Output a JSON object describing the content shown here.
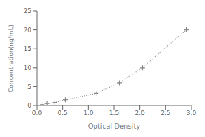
{
  "chart_data": {
    "type": "line",
    "x": [
      0.1,
      0.2,
      0.35,
      0.55,
      1.15,
      1.6,
      2.05,
      2.9
    ],
    "values": [
      0.2,
      0.5,
      0.8,
      1.5,
      3.2,
      6.0,
      10.0,
      20.0
    ],
    "xlabel": "Optical Density",
    "ylabel": "Concentration(ng/mL)",
    "xlim": [
      0,
      3.0
    ],
    "ylim": [
      0,
      25
    ],
    "xticks": [
      {
        "value": 0,
        "label": "0.0"
      },
      {
        "value": 0.5,
        "label": "0.5"
      },
      {
        "value": 1,
        "label": "1.0"
      },
      {
        "value": 1.5,
        "label": "1.5"
      },
      {
        "value": 2,
        "label": "2.0"
      },
      {
        "value": 2.5,
        "label": "2.5"
      },
      {
        "value": 3,
        "label": "3.0"
      }
    ],
    "yticks": [
      0,
      5,
      10,
      15,
      20,
      25
    ],
    "color": "#888888",
    "marker": "+",
    "line_style": "dotted",
    "grid": false
  }
}
